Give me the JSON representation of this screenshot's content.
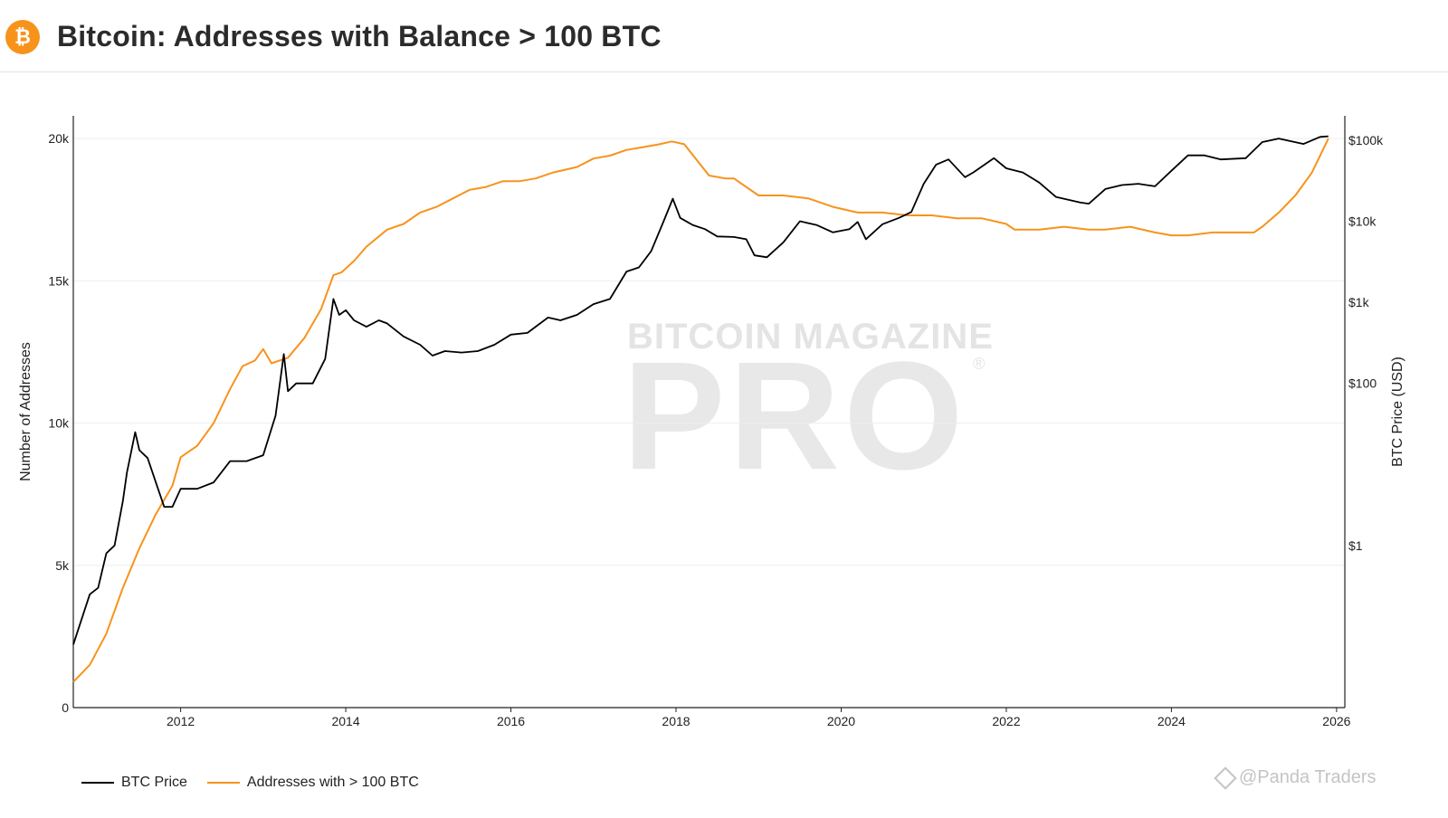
{
  "header": {
    "logo_symbol": "₿",
    "title": "Bitcoin: Addresses with Balance > 100 BTC"
  },
  "watermark": {
    "line1": "BITCOIN MAGAZINE",
    "line2": "PRO",
    "reg": "®"
  },
  "credit": "@Panda Traders",
  "colors": {
    "price": "#000000",
    "addresses": "#f7931a",
    "grid": "#eeeeee",
    "axis": "#222222"
  },
  "chart_data": {
    "type": "line",
    "title": "Bitcoin: Addresses with Balance > 100 BTC",
    "xlabel": "",
    "ylabel_left": "Number of Addresses",
    "ylabel_right": "BTC Price (USD)",
    "x_range": [
      2010.7,
      2026.1
    ],
    "y_left_range": [
      0,
      20800
    ],
    "y_right_log_range": [
      0.01,
      200000
    ],
    "x_ticks": [
      2012,
      2014,
      2016,
      2018,
      2020,
      2022,
      2024,
      2026
    ],
    "y_left_ticks": [
      {
        "value": 0,
        "label": "0"
      },
      {
        "value": 5000,
        "label": "5k"
      },
      {
        "value": 10000,
        "label": "10k"
      },
      {
        "value": 15000,
        "label": "15k"
      },
      {
        "value": 20000,
        "label": "20k"
      }
    ],
    "y_right_ticks": [
      {
        "value": 1,
        "label": "$1"
      },
      {
        "value": 100,
        "label": "$100"
      },
      {
        "value": 1000,
        "label": "$1k"
      },
      {
        "value": 10000,
        "label": "$10k"
      },
      {
        "value": 100000,
        "label": "$100k"
      }
    ],
    "grid": true,
    "legend_position": "bottom-left",
    "series": [
      {
        "name": "BTC Price",
        "axis": "right",
        "x": [
          2010.7,
          2010.9,
          2011.0,
          2011.1,
          2011.2,
          2011.3,
          2011.35,
          2011.45,
          2011.5,
          2011.6,
          2011.7,
          2011.8,
          2011.9,
          2012.0,
          2012.2,
          2012.4,
          2012.6,
          2012.8,
          2013.0,
          2013.15,
          2013.25,
          2013.3,
          2013.4,
          2013.5,
          2013.6,
          2013.75,
          2013.85,
          2013.92,
          2014.0,
          2014.1,
          2014.25,
          2014.4,
          2014.5,
          2014.7,
          2014.9,
          2015.05,
          2015.2,
          2015.4,
          2015.6,
          2015.8,
          2016.0,
          2016.2,
          2016.45,
          2016.6,
          2016.8,
          2017.0,
          2017.2,
          2017.4,
          2017.55,
          2017.7,
          2017.85,
          2017.96,
          2018.05,
          2018.2,
          2018.35,
          2018.5,
          2018.7,
          2018.85,
          2018.95,
          2019.1,
          2019.3,
          2019.5,
          2019.7,
          2019.9,
          2020.1,
          2020.2,
          2020.3,
          2020.5,
          2020.7,
          2020.85,
          2021.0,
          2021.15,
          2021.3,
          2021.5,
          2021.6,
          2021.85,
          2022.0,
          2022.2,
          2022.4,
          2022.6,
          2022.9,
          2023.0,
          2023.2,
          2023.4,
          2023.6,
          2023.8,
          2024.0,
          2024.2,
          2024.4,
          2024.6,
          2024.9,
          2025.1,
          2025.3,
          2025.6,
          2025.8,
          2025.9
        ],
        "values": [
          0.06,
          0.25,
          0.3,
          0.8,
          1.0,
          3.5,
          8,
          25,
          15,
          12,
          6,
          3,
          3,
          5,
          5,
          6,
          11,
          11,
          13,
          40,
          230,
          80,
          100,
          100,
          100,
          200,
          1100,
          700,
          800,
          600,
          500,
          600,
          550,
          380,
          300,
          220,
          250,
          240,
          250,
          300,
          400,
          420,
          650,
          600,
          700,
          950,
          1100,
          2400,
          2700,
          4300,
          10000,
          19000,
          11000,
          9000,
          8000,
          6500,
          6400,
          6000,
          3800,
          3600,
          5500,
          10000,
          9000,
          7300,
          8000,
          9800,
          6000,
          9200,
          11000,
          13000,
          29000,
          50000,
          58000,
          35000,
          40000,
          60000,
          45000,
          40000,
          30000,
          20000,
          17000,
          16500,
          25000,
          28000,
          29000,
          27000,
          42000,
          65000,
          65000,
          58000,
          60000,
          95000,
          105000,
          90000,
          110000,
          112000
        ]
      },
      {
        "name": "Addresses with > 100 BTC",
        "axis": "left",
        "x": [
          2010.7,
          2010.9,
          2011.1,
          2011.3,
          2011.5,
          2011.7,
          2011.9,
          2012.0,
          2012.2,
          2012.4,
          2012.6,
          2012.75,
          2012.9,
          2013.0,
          2013.1,
          2013.3,
          2013.5,
          2013.7,
          2013.85,
          2013.95,
          2014.1,
          2014.25,
          2014.5,
          2014.7,
          2014.9,
          2015.1,
          2015.3,
          2015.5,
          2015.7,
          2015.9,
          2016.1,
          2016.3,
          2016.5,
          2016.8,
          2017.0,
          2017.2,
          2017.4,
          2017.6,
          2017.8,
          2017.95,
          2018.1,
          2018.4,
          2018.6,
          2018.7,
          2019.0,
          2019.3,
          2019.6,
          2019.9,
          2020.2,
          2020.5,
          2020.8,
          2021.1,
          2021.4,
          2021.7,
          2022.0,
          2022.1,
          2022.4,
          2022.7,
          2023.0,
          2023.2,
          2023.5,
          2023.8,
          2024.0,
          2024.2,
          2024.5,
          2024.8,
          2025.0,
          2025.1,
          2025.3,
          2025.5,
          2025.7,
          2025.9
        ],
        "values": [
          900,
          1500,
          2600,
          4200,
          5600,
          6800,
          7800,
          8800,
          9200,
          10000,
          11200,
          12000,
          12200,
          12600,
          12100,
          12300,
          13000,
          14000,
          15200,
          15300,
          15700,
          16200,
          16800,
          17000,
          17400,
          17600,
          17900,
          18200,
          18300,
          18500,
          18500,
          18600,
          18800,
          19000,
          19300,
          19400,
          19600,
          19700,
          19800,
          19900,
          19800,
          18700,
          18600,
          18600,
          18000,
          18000,
          17900,
          17600,
          17400,
          17400,
          17300,
          17300,
          17200,
          17200,
          17000,
          16800,
          16800,
          16900,
          16800,
          16800,
          16900,
          16700,
          16600,
          16600,
          16700,
          16700,
          16700,
          16900,
          17400,
          18000,
          18800,
          20000
        ]
      }
    ]
  }
}
